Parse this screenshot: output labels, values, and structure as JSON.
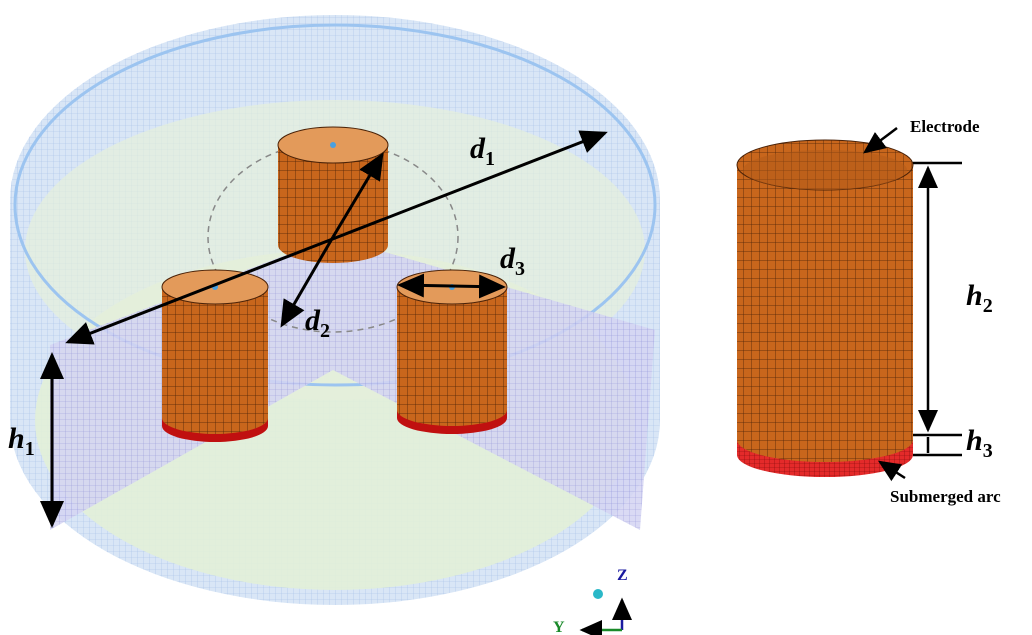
{
  "labels": {
    "d1": {
      "symbol": "d",
      "subscript": "1"
    },
    "d2": {
      "symbol": "d",
      "subscript": "2"
    },
    "d3": {
      "symbol": "d",
      "subscript": "3"
    },
    "h1": {
      "symbol": "h",
      "subscript": "1"
    },
    "h2": {
      "symbol": "h",
      "subscript": "2"
    },
    "h3": {
      "symbol": "h",
      "subscript": "3"
    }
  },
  "annotations": {
    "electrode": "Electrode",
    "submerged_arc": "Submerged arc"
  },
  "axes": {
    "z": "Z",
    "y": "Y"
  }
}
